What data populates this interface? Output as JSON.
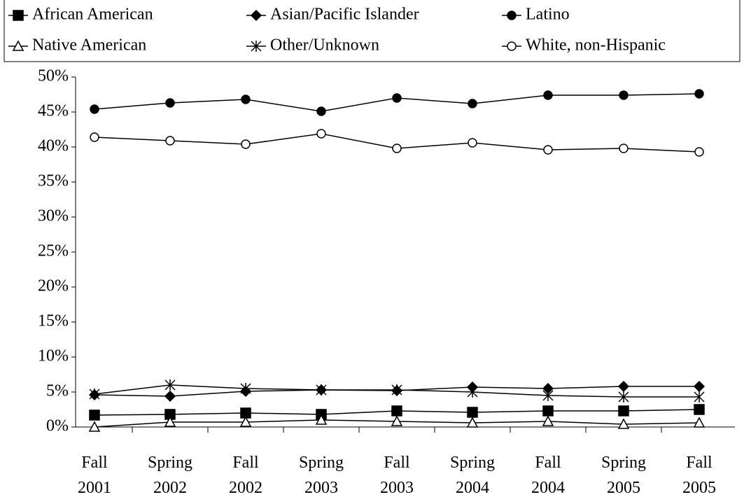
{
  "chart_data": {
    "type": "line",
    "categories": [
      [
        "Fall",
        "2001"
      ],
      [
        "Spring",
        "2002"
      ],
      [
        "Fall",
        "2002"
      ],
      [
        "Spring",
        "2003"
      ],
      [
        "Fall",
        "2003"
      ],
      [
        "Spring",
        "2004"
      ],
      [
        "Fall",
        "2004"
      ],
      [
        "Spring",
        "2005"
      ],
      [
        "Fall",
        "2005"
      ]
    ],
    "series": [
      {
        "name": "African American",
        "color": "#000000",
        "marker": "square",
        "values": [
          1.7,
          1.8,
          2.0,
          1.8,
          2.3,
          2.1,
          2.3,
          2.3,
          2.5
        ]
      },
      {
        "name": "Asian/Pacific Islander",
        "color": "#000000",
        "marker": "diamond",
        "values": [
          4.6,
          4.4,
          5.1,
          5.3,
          5.2,
          5.7,
          5.5,
          5.8,
          5.8
        ]
      },
      {
        "name": "Latino",
        "color": "#000000",
        "marker": "circle",
        "values": [
          45.4,
          46.3,
          46.8,
          45.1,
          47.0,
          46.2,
          47.4,
          47.4,
          47.6
        ]
      },
      {
        "name": "Native American",
        "color": "#000000",
        "marker": "triangle-open",
        "values": [
          0.0,
          0.7,
          0.7,
          1.0,
          0.8,
          0.6,
          0.8,
          0.4,
          0.6
        ]
      },
      {
        "name": "Other/Unknown",
        "color": "#000000",
        "marker": "star",
        "values": [
          4.7,
          6.0,
          5.5,
          5.3,
          5.3,
          5.0,
          4.5,
          4.3,
          4.3
        ]
      },
      {
        "name": "White, non-Hispanic",
        "color": "#000000",
        "marker": "circle-open",
        "values": [
          41.4,
          40.9,
          40.4,
          41.9,
          39.8,
          40.6,
          39.6,
          39.8,
          39.3
        ]
      }
    ],
    "ylim": [
      0,
      50
    ],
    "yticks": [
      {
        "value": 0,
        "label": "0%"
      },
      {
        "value": 5,
        "label": "5%"
      },
      {
        "value": 10,
        "label": "10%"
      },
      {
        "value": 15,
        "label": "15%"
      },
      {
        "value": 20,
        "label": "20%"
      },
      {
        "value": 25,
        "label": "25%"
      },
      {
        "value": 30,
        "label": "30%"
      },
      {
        "value": 35,
        "label": "35%"
      },
      {
        "value": 40,
        "label": "40%"
      },
      {
        "value": 45,
        "label": "45%"
      },
      {
        "value": 50,
        "label": "50%"
      }
    ],
    "grid": false
  }
}
